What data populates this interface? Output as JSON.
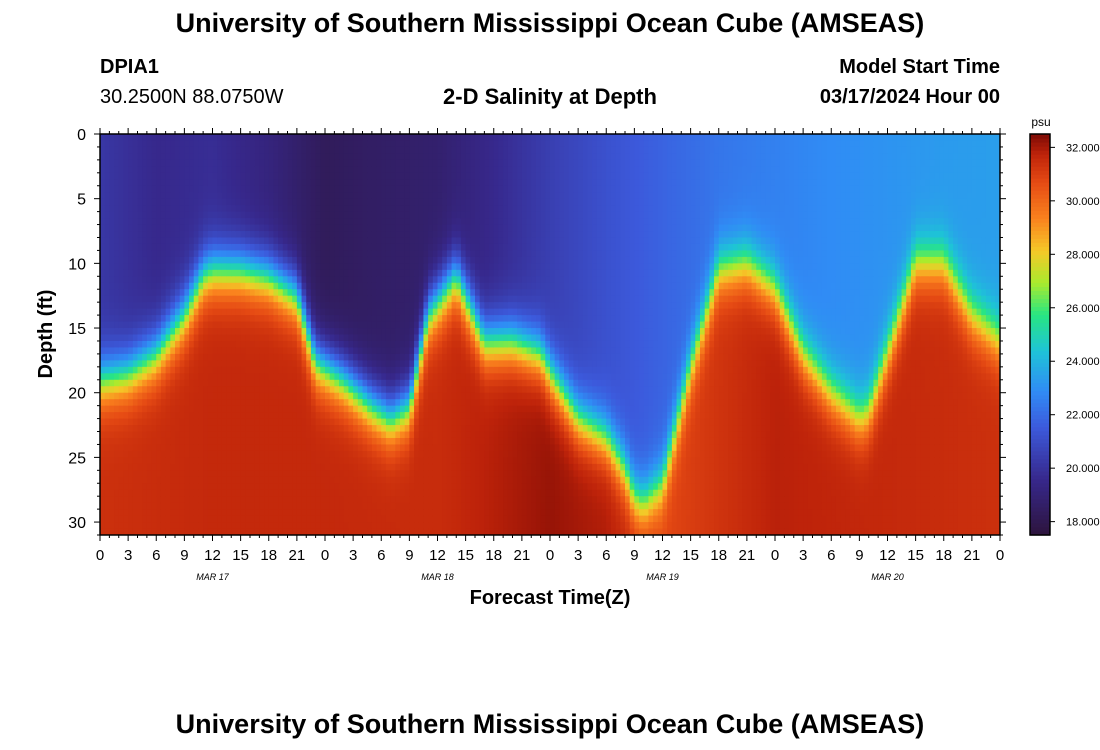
{
  "header": {
    "title": "University of Southern Mississippi Ocean Cube (AMSEAS)",
    "station_id": "DPIA1",
    "station_coords": "30.2500N  88.0750W",
    "subtitle": "2-D Salinity at Depth",
    "model_start_label": "Model Start Time",
    "model_start_value": "03/17/2024 Hour 00"
  },
  "footer": {
    "title": "University of Southern Mississippi Ocean Cube (AMSEAS)"
  },
  "chart_data": {
    "type": "heatmap",
    "title": "2-D Salinity at Depth",
    "xlabel": "Forecast Time(Z)",
    "ylabel": "Depth (ft)",
    "x_unit": "hours since 03/17/2024 00Z",
    "x_range": [
      0,
      96
    ],
    "y_range": [
      0,
      31
    ],
    "y_inverted": true,
    "x_tick_step_hours": 3,
    "x_tick_labels": [
      "0",
      "3",
      "6",
      "9",
      "12",
      "15",
      "18",
      "21",
      "0",
      "3",
      "6",
      "9",
      "12",
      "15",
      "18",
      "21",
      "0",
      "3",
      "6",
      "9",
      "12",
      "15",
      "18",
      "21",
      "0",
      "3",
      "6",
      "9",
      "12",
      "15",
      "18",
      "21",
      "0"
    ],
    "y_ticks": [
      0,
      5,
      10,
      15,
      20,
      25,
      30
    ],
    "y_tick_labels": [
      "0",
      "5",
      "10",
      "15",
      "20",
      "25",
      "30"
    ],
    "date_labels": [
      {
        "text": "MAR 17",
        "hour": 12
      },
      {
        "text": "MAR 18",
        "hour": 36
      },
      {
        "text": "MAR 19",
        "hour": 60
      },
      {
        "text": "MAR 20",
        "hour": 84
      }
    ],
    "colorbar": {
      "unit": "psu",
      "min": 17.5,
      "max": 32.5,
      "ticks": [
        18,
        20,
        22,
        24,
        26,
        28,
        30,
        32
      ],
      "tick_labels": [
        "18.000",
        "20.000",
        "22.000",
        "24.000",
        "26.000",
        "28.000",
        "30.000",
        "32.000"
      ]
    },
    "halocline": {
      "description": "approximate depth (ft) of mid-salinity transition vs forecast hour",
      "hours": [
        0,
        3,
        6,
        9,
        11,
        12,
        15,
        18,
        21,
        23,
        26,
        29,
        31,
        33,
        35,
        38,
        41,
        44,
        47,
        48,
        51,
        54,
        56,
        57,
        58,
        60,
        63,
        66,
        69,
        72,
        75,
        78,
        81,
        82,
        84,
        87,
        90,
        93,
        96
      ],
      "depth_ft": [
        19,
        18.5,
        17,
        14,
        11,
        10.5,
        10.5,
        11,
        12.5,
        17.5,
        19,
        21,
        22,
        21,
        14,
        11,
        16,
        16,
        17,
        18.5,
        22,
        23.5,
        26,
        28,
        28.5,
        27,
        18,
        10.5,
        10,
        12,
        17,
        20,
        22,
        21.5,
        17,
        10,
        10,
        14,
        16
      ]
    },
    "surface_salinity_psu": {
      "hours": [
        0,
        6,
        12,
        18,
        24,
        30,
        36,
        42,
        48,
        54,
        60,
        66,
        72,
        78,
        84,
        90,
        96
      ],
      "values": [
        20.2,
        19.6,
        19.8,
        19.2,
        18.3,
        18.6,
        18.8,
        19.6,
        20.5,
        21.2,
        21.8,
        22.3,
        22.6,
        22.9,
        23.1,
        23.3,
        23.4
      ]
    },
    "bottom_salinity_psu": {
      "hours": [
        0,
        12,
        24,
        36,
        48,
        54,
        60,
        72,
        84,
        96
      ],
      "values": [
        31.4,
        31.6,
        31.6,
        31.5,
        32.2,
        31.9,
        30.8,
        31.8,
        31.6,
        31.4
      ]
    }
  }
}
